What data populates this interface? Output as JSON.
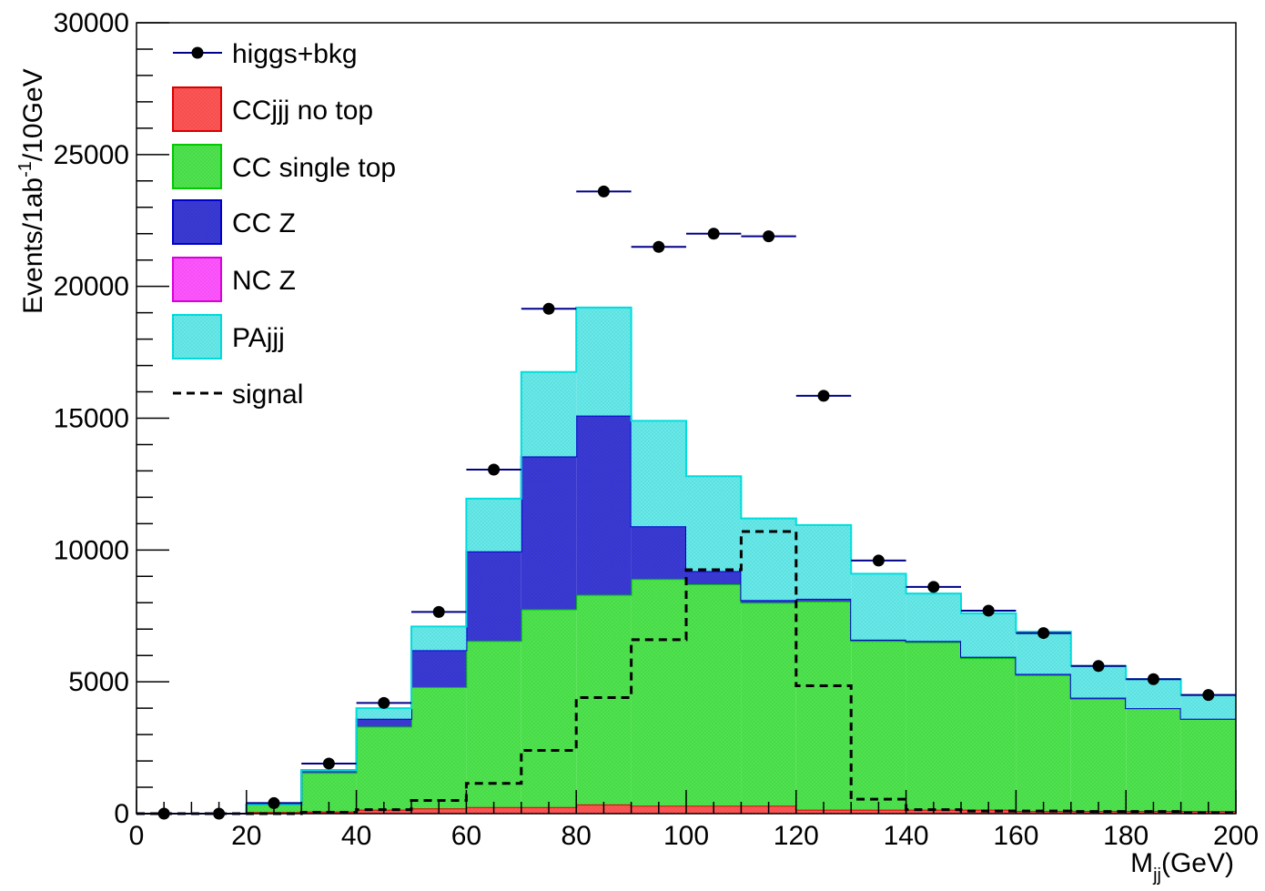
{
  "chart_data": {
    "type": "bar",
    "xlabel": "M",
    "xlabel_sub": "jj",
    "xlabel_unit": "(GeV)",
    "ylabel": "Events/1ab",
    "ylabel_sup": "-1",
    "ylabel_unit": "/10GeV",
    "xlim": [
      0,
      200
    ],
    "ylim": [
      0,
      30000
    ],
    "grid": false,
    "legend_position": "top-left",
    "x_ticks": [
      "0",
      "20",
      "40",
      "60",
      "80",
      "100",
      "120",
      "140",
      "160",
      "180",
      "200"
    ],
    "y_ticks": [
      "0",
      "5000",
      "10000",
      "15000",
      "20000",
      "25000",
      "30000"
    ],
    "bin_edges": [
      0,
      10,
      20,
      30,
      40,
      50,
      60,
      70,
      80,
      90,
      100,
      110,
      120,
      130,
      140,
      150,
      160,
      170,
      180,
      190,
      200
    ],
    "stack_series": [
      {
        "name": "CCjjj no top",
        "fill": "#ff5555",
        "line": "#dd0000",
        "values": [
          0,
          0,
          60,
          80,
          150,
          200,
          250,
          250,
          350,
          300,
          300,
          300,
          150,
          150,
          150,
          150,
          100,
          100,
          100,
          100
        ]
      },
      {
        "name": "CC single top",
        "fill": "#4ee44e",
        "line": "#00cc00",
        "values": [
          0,
          0,
          290,
          1470,
          3150,
          4600,
          6300,
          7500,
          7950,
          8600,
          8400,
          7700,
          7900,
          6400,
          6350,
          5750,
          5150,
          4250,
          3900,
          3500
        ]
      },
      {
        "name": "CC Z",
        "fill": "#3a3ad6",
        "line": "#0000cc",
        "values": [
          0,
          0,
          0,
          100,
          300,
          1400,
          3400,
          5800,
          6800,
          2000,
          500,
          100,
          100,
          50,
          50,
          50,
          50,
          50,
          0,
          0
        ]
      },
      {
        "name": "NC Z",
        "fill": "#ff55ff",
        "line": "#dd00dd",
        "values": [
          0,
          0,
          0,
          0,
          0,
          0,
          0,
          0,
          0,
          0,
          0,
          0,
          0,
          0,
          0,
          0,
          0,
          0,
          0,
          0
        ]
      },
      {
        "name": "PAjjj",
        "fill": "#66eaea",
        "line": "#00dddd",
        "values": [
          0,
          0,
          0,
          0,
          400,
          900,
          2000,
          3200,
          4100,
          4000,
          3600,
          3100,
          2800,
          2500,
          1800,
          1650,
          1600,
          1200,
          1100,
          900
        ]
      }
    ],
    "signal": {
      "name": "signal",
      "values": [
        0,
        0,
        0,
        50,
        150,
        500,
        1150,
        2400,
        4400,
        6600,
        9250,
        10700,
        4850,
        550,
        150,
        100,
        100,
        80,
        80,
        30
      ]
    },
    "data_points": {
      "name": "higgs+bkg",
      "x": [
        5,
        15,
        25,
        35,
        45,
        55,
        65,
        75,
        85,
        95,
        105,
        115,
        125,
        135,
        145,
        155,
        165,
        175,
        185,
        195
      ],
      "y": [
        0,
        0,
        400,
        1900,
        4200,
        7650,
        13050,
        19150,
        23600,
        21500,
        22000,
        21900,
        15850,
        9600,
        8600,
        7700,
        6850,
        5600,
        5100,
        4500
      ]
    }
  }
}
